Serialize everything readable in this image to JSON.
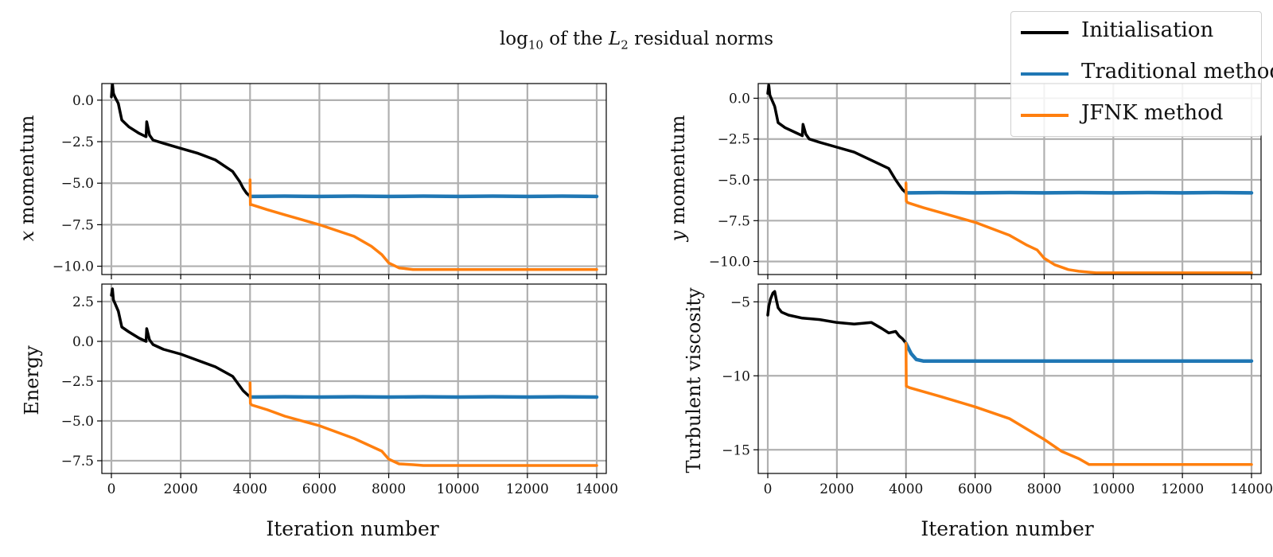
{
  "title": {
    "prefix": "log",
    "subscript": "10",
    "middle": " of the ",
    "norm_var": "L",
    "norm_sub": "2",
    "suffix": " residual norms"
  },
  "colors": {
    "initialisation": "#000000",
    "traditional": "#1f77b4",
    "jfnk": "#ff7f0e",
    "grid": "#b0b0b0"
  },
  "legend": {
    "placement": "top-right",
    "entries": [
      {
        "label": "Initialisation",
        "color": "#000000"
      },
      {
        "label": "Traditional method",
        "color": "#1f77b4"
      },
      {
        "label": "JFNK method",
        "color": "#ff7f0e"
      }
    ]
  },
  "chart_data": [
    {
      "type": "line",
      "ylabel": "x momentum",
      "ylabel_italic_prefix": "x",
      "xlabel": "",
      "xlim": [
        0,
        14000
      ],
      "ylim": [
        -10.5,
        1.0
      ],
      "yticks": [
        0.0,
        -2.5,
        -5.0,
        -7.5,
        -10.0
      ],
      "ytick_labels": [
        "0.0",
        "−2.5",
        "−5.0",
        "−7.5",
        "−10.0"
      ],
      "xticks": [
        0,
        2000,
        4000,
        6000,
        8000,
        10000,
        12000,
        14000
      ],
      "xtick_labels": [],
      "grid": true,
      "series": [
        {
          "name": "Initialisation",
          "color": "#000000",
          "x": [
            0,
            30,
            60,
            100,
            200,
            300,
            500,
            800,
            1000,
            1020,
            1100,
            1200,
            1500,
            2000,
            2500,
            3000,
            3500,
            3700,
            3800,
            3900,
            4000
          ],
          "y": [
            0.2,
            1.0,
            0.4,
            0.2,
            -0.2,
            -1.2,
            -1.6,
            -2.0,
            -2.2,
            -1.3,
            -2.1,
            -2.4,
            -2.6,
            -2.9,
            -3.2,
            -3.6,
            -4.3,
            -4.9,
            -5.3,
            -5.6,
            -5.8
          ]
        },
        {
          "name": "Traditional method",
          "color": "#1f77b4",
          "x": [
            4000,
            5000,
            6000,
            7000,
            8000,
            9000,
            10000,
            11000,
            12000,
            13000,
            14000
          ],
          "y": [
            -5.8,
            -5.78,
            -5.8,
            -5.78,
            -5.8,
            -5.78,
            -5.8,
            -5.78,
            -5.8,
            -5.78,
            -5.8
          ]
        },
        {
          "name": "JFNK method",
          "color": "#ff7f0e",
          "x": [
            4000,
            4010,
            4050,
            4500,
            5000,
            6000,
            7000,
            7500,
            7800,
            8000,
            8300,
            8700,
            9000,
            14000
          ],
          "y": [
            -4.8,
            -6.3,
            -6.3,
            -6.6,
            -6.9,
            -7.5,
            -8.2,
            -8.8,
            -9.3,
            -9.8,
            -10.1,
            -10.2,
            -10.2,
            -10.2
          ]
        }
      ]
    },
    {
      "type": "line",
      "ylabel": "y momentum",
      "ylabel_italic_prefix": "y",
      "xlabel": "Iteration number",
      "xlim": [
        0,
        14000
      ],
      "ylim": [
        -10.8,
        0.9
      ],
      "yticks": [
        0.0,
        -2.5,
        -5.0,
        -7.5,
        -10.0
      ],
      "ytick_labels": [
        "0.0",
        "−2.5",
        "−5.0",
        "−7.5",
        "−10.0"
      ],
      "xticks": [
        0,
        2000,
        4000,
        6000,
        8000,
        10000,
        12000,
        14000
      ],
      "xtick_labels": [],
      "grid": true,
      "series": [
        {
          "name": "Initialisation",
          "color": "#000000",
          "x": [
            0,
            30,
            60,
            100,
            200,
            300,
            500,
            800,
            1000,
            1020,
            1100,
            1200,
            1500,
            2000,
            2500,
            3000,
            3500,
            3700,
            3800,
            3900,
            4000
          ],
          "y": [
            0.3,
            0.8,
            0.2,
            0.0,
            -0.5,
            -1.5,
            -1.8,
            -2.1,
            -2.3,
            -1.6,
            -2.2,
            -2.5,
            -2.7,
            -3.0,
            -3.3,
            -3.8,
            -4.3,
            -5.0,
            -5.3,
            -5.6,
            -5.8
          ]
        },
        {
          "name": "Traditional method",
          "color": "#1f77b4",
          "x": [
            4000,
            5000,
            6000,
            7000,
            8000,
            9000,
            10000,
            11000,
            12000,
            13000,
            14000
          ],
          "y": [
            -5.8,
            -5.78,
            -5.8,
            -5.78,
            -5.8,
            -5.78,
            -5.8,
            -5.78,
            -5.8,
            -5.78,
            -5.8
          ]
        },
        {
          "name": "JFNK method",
          "color": "#ff7f0e",
          "x": [
            4000,
            4010,
            4050,
            4500,
            5000,
            6000,
            7000,
            7500,
            7800,
            8000,
            8300,
            8700,
            9000,
            9500,
            14000
          ],
          "y": [
            -5.2,
            -6.3,
            -6.4,
            -6.7,
            -7.0,
            -7.6,
            -8.4,
            -9.0,
            -9.3,
            -9.8,
            -10.2,
            -10.5,
            -10.6,
            -10.7,
            -10.7
          ]
        }
      ]
    },
    {
      "type": "line",
      "ylabel": "Energy",
      "xlabel": "Iteration number",
      "xlim": [
        0,
        14000
      ],
      "ylim": [
        -8.3,
        3.6
      ],
      "yticks": [
        2.5,
        0.0,
        -2.5,
        -5.0,
        -7.5
      ],
      "ytick_labels": [
        "2.5",
        "0.0",
        "−2.5",
        "−5.0",
        "−7.5"
      ],
      "xticks": [
        0,
        2000,
        4000,
        6000,
        8000,
        10000,
        12000,
        14000
      ],
      "xtick_labels": [
        "0",
        "2000",
        "4000",
        "6000",
        "8000",
        "10000",
        "12000",
        "14000"
      ],
      "grid": true,
      "series": [
        {
          "name": "Initialisation",
          "color": "#000000",
          "x": [
            0,
            30,
            60,
            100,
            200,
            300,
            500,
            800,
            1000,
            1020,
            1100,
            1200,
            1500,
            2000,
            2500,
            3000,
            3500,
            3700,
            3800,
            3900,
            4000
          ],
          "y": [
            2.9,
            3.3,
            2.6,
            2.4,
            1.9,
            0.9,
            0.6,
            0.2,
            0.0,
            0.8,
            0.1,
            -0.2,
            -0.5,
            -0.8,
            -1.2,
            -1.6,
            -2.2,
            -2.8,
            -3.1,
            -3.3,
            -3.5
          ]
        },
        {
          "name": "Traditional method",
          "color": "#1f77b4",
          "x": [
            4000,
            5000,
            6000,
            7000,
            8000,
            9000,
            10000,
            11000,
            12000,
            13000,
            14000
          ],
          "y": [
            -3.5,
            -3.48,
            -3.5,
            -3.48,
            -3.5,
            -3.48,
            -3.5,
            -3.48,
            -3.5,
            -3.48,
            -3.5
          ]
        },
        {
          "name": "JFNK method",
          "color": "#ff7f0e",
          "x": [
            4000,
            4010,
            4050,
            4500,
            5000,
            6000,
            7000,
            7500,
            7800,
            8000,
            8300,
            8700,
            9000,
            14000
          ],
          "y": [
            -2.6,
            -3.9,
            -4.0,
            -4.3,
            -4.7,
            -5.3,
            -6.1,
            -6.6,
            -6.9,
            -7.4,
            -7.7,
            -7.75,
            -7.8,
            -7.8
          ]
        }
      ]
    },
    {
      "type": "line",
      "ylabel": "Turbulent viscosity",
      "xlabel": "Iteration number",
      "xlim": [
        0,
        14000
      ],
      "ylim": [
        -16.6,
        -3.8
      ],
      "yticks": [
        -5,
        -10,
        -15
      ],
      "ytick_labels": [
        "−5",
        "−10",
        "−15"
      ],
      "xticks": [
        0,
        2000,
        4000,
        6000,
        8000,
        10000,
        12000,
        14000
      ],
      "xtick_labels": [
        "0",
        "2000",
        "4000",
        "6000",
        "8000",
        "10000",
        "12000",
        "14000"
      ],
      "grid": true,
      "series": [
        {
          "name": "Initialisation",
          "color": "#000000",
          "x": [
            0,
            30,
            80,
            150,
            200,
            250,
            300,
            400,
            600,
            1000,
            1500,
            2000,
            2500,
            3000,
            3300,
            3500,
            3700,
            3800,
            3900,
            4000
          ],
          "y": [
            -5.9,
            -5.3,
            -4.8,
            -4.4,
            -4.3,
            -4.9,
            -5.4,
            -5.7,
            -5.9,
            -6.1,
            -6.2,
            -6.4,
            -6.5,
            -6.4,
            -6.8,
            -7.1,
            -7.0,
            -7.3,
            -7.5,
            -7.8
          ]
        },
        {
          "name": "Traditional method",
          "color": "#1f77b4",
          "x": [
            4000,
            4150,
            4300,
            4500,
            5000,
            8000,
            11000,
            14000
          ],
          "y": [
            -7.8,
            -8.5,
            -8.9,
            -9.0,
            -9.0,
            -9.0,
            -9.0,
            -9.0
          ]
        },
        {
          "name": "JFNK method",
          "color": "#ff7f0e",
          "x": [
            4000,
            4010,
            4100,
            5000,
            6000,
            7000,
            7500,
            8000,
            8500,
            9000,
            9300,
            9500,
            14000
          ],
          "y": [
            -7.8,
            -10.7,
            -10.8,
            -11.4,
            -12.1,
            -12.9,
            -13.6,
            -14.3,
            -15.1,
            -15.6,
            -16.0,
            -16.0,
            -16.0
          ]
        }
      ]
    }
  ]
}
